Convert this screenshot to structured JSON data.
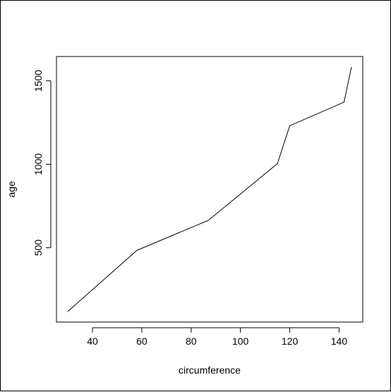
{
  "chart_data": {
    "type": "line",
    "title": "",
    "xlabel": "circumference",
    "ylabel": "age",
    "x": [
      30,
      58,
      87,
      115,
      120,
      142,
      145
    ],
    "y": [
      118,
      484,
      664,
      1004,
      1231,
      1372,
      1582
    ],
    "xlim": [
      25.4,
      149.6
    ],
    "ylim": [
      54.4,
      1645.6
    ],
    "xticks": [
      40,
      60,
      80,
      100,
      120,
      140
    ],
    "yticks": [
      500,
      1000,
      1500
    ],
    "xtick_labels": [
      "40",
      "60",
      "80",
      "100",
      "120",
      "140"
    ],
    "ytick_labels": [
      "500",
      "1000",
      "1500"
    ],
    "line_color": "#000000",
    "grid": false,
    "legend": "none"
  }
}
